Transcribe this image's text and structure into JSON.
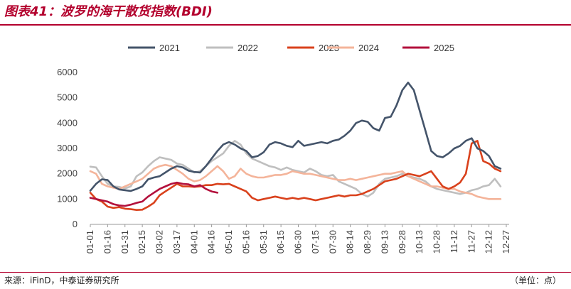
{
  "figure": {
    "title": "图表41：波罗的海干散货指数(BDI)",
    "source": "来源：iFinD，中泰证券研究所",
    "unit": "（单位：点）"
  },
  "colors": {
    "accent": "#b3002d",
    "2021": "#44546a",
    "2022": "#bfbfbf",
    "2023": "#d9411c",
    "2024": "#f4b49a",
    "2025": "#b3103c"
  },
  "chart_data": {
    "type": "line",
    "title": "",
    "xlabel": "",
    "ylabel": "",
    "ylim": [
      0,
      6000
    ],
    "yticks": [
      "0",
      "1000",
      "2000",
      "3000",
      "4000",
      "5000",
      "6000"
    ],
    "xticks": [
      "01-01",
      "01-16",
      "01-31",
      "02-15",
      "03-02",
      "03-17",
      "04-01",
      "04-16",
      "05-01",
      "05-16",
      "05-31",
      "06-15",
      "06-30",
      "07-15",
      "07-30",
      "08-14",
      "08-29",
      "09-13",
      "09-28",
      "10-13",
      "10-28",
      "11-12",
      "11-27",
      "12-12",
      "12-27"
    ],
    "x_unit": "day-of-year",
    "legend_position": "top",
    "grid": false,
    "series": [
      {
        "name": "2021",
        "x": [
          1,
          6,
          11,
          16,
          21,
          26,
          31,
          36,
          41,
          46,
          51,
          56,
          61,
          66,
          71,
          76,
          81,
          86,
          91,
          96,
          101,
          106,
          111,
          116,
          121,
          126,
          131,
          136,
          141,
          146,
          151,
          156,
          161,
          166,
          171,
          176,
          181,
          186,
          191,
          196,
          201,
          206,
          211,
          216,
          221,
          226,
          231,
          236,
          241,
          246,
          251,
          256,
          261,
          266,
          271,
          276,
          281,
          286,
          291,
          296,
          301,
          306,
          311,
          316,
          321,
          326,
          331,
          336,
          341,
          346,
          351,
          356
        ],
        "y": [
          1330,
          1600,
          1780,
          1750,
          1500,
          1380,
          1350,
          1320,
          1400,
          1500,
          1780,
          1850,
          1900,
          2050,
          2200,
          2300,
          2250,
          2120,
          2070,
          2050,
          2300,
          2600,
          2900,
          3150,
          3250,
          3150,
          3000,
          2900,
          2650,
          2700,
          2850,
          3150,
          3250,
          3200,
          3100,
          3050,
          3300,
          3100,
          3150,
          3200,
          3250,
          3200,
          3300,
          3350,
          3500,
          3700,
          4000,
          4100,
          4050,
          3800,
          3700,
          4200,
          4250,
          4700,
          5300,
          5600,
          5300,
          4500,
          3700,
          2900,
          2700,
          2650,
          2800,
          3000,
          3100,
          3300,
          3400,
          3000,
          2900,
          2700,
          2300,
          2200
        ]
      },
      {
        "name": "2022",
        "x": [
          1,
          6,
          11,
          16,
          21,
          26,
          31,
          36,
          41,
          46,
          51,
          56,
          61,
          66,
          71,
          76,
          81,
          86,
          91,
          96,
          101,
          106,
          111,
          116,
          121,
          126,
          131,
          136,
          141,
          146,
          151,
          156,
          161,
          166,
          171,
          176,
          181,
          186,
          191,
          196,
          201,
          206,
          211,
          216,
          221,
          226,
          231,
          236,
          241,
          246,
          251,
          256,
          261,
          266,
          271,
          276,
          281,
          286,
          291,
          296,
          301,
          306,
          311,
          316,
          321,
          326,
          331,
          336,
          341,
          346,
          351,
          356
        ],
        "y": [
          2280,
          2250,
          1900,
          1600,
          1500,
          1480,
          1420,
          1500,
          1900,
          2050,
          2300,
          2500,
          2650,
          2600,
          2550,
          2400,
          2350,
          2200,
          2050,
          2100,
          2300,
          2500,
          2650,
          2800,
          3100,
          3300,
          3150,
          2800,
          2600,
          2500,
          2400,
          2300,
          2250,
          2150,
          2250,
          2150,
          2100,
          2050,
          2200,
          2100,
          1950,
          1900,
          1950,
          1700,
          1600,
          1500,
          1400,
          1200,
          1100,
          1250,
          1600,
          1800,
          1850,
          1900,
          2000,
          1900,
          1850,
          1800,
          1700,
          1500,
          1400,
          1350,
          1300,
          1250,
          1200,
          1250,
          1350,
          1400,
          1500,
          1550,
          1800,
          1500
        ]
      },
      {
        "name": "2023",
        "x": [
          1,
          6,
          11,
          16,
          21,
          26,
          31,
          36,
          41,
          46,
          51,
          56,
          61,
          66,
          71,
          76,
          81,
          86,
          91,
          96,
          101,
          106,
          111,
          116,
          121,
          126,
          131,
          136,
          141,
          146,
          151,
          156,
          161,
          166,
          171,
          176,
          181,
          186,
          191,
          196,
          201,
          206,
          211,
          216,
          221,
          226,
          231,
          236,
          241,
          246,
          251,
          256,
          261,
          266,
          271,
          276,
          281,
          286,
          291,
          296,
          301,
          306,
          311,
          316,
          321,
          326,
          331,
          336,
          341,
          346,
          351,
          356
        ],
        "y": [
          1250,
          1000,
          900,
          700,
          650,
          680,
          620,
          600,
          570,
          580,
          700,
          850,
          1150,
          1300,
          1450,
          1600,
          1500,
          1500,
          1480,
          1500,
          1550,
          1550,
          1600,
          1580,
          1600,
          1500,
          1400,
          1300,
          1050,
          950,
          1000,
          1050,
          1100,
          1050,
          1000,
          1050,
          1000,
          1050,
          1000,
          950,
          1000,
          1050,
          1100,
          1150,
          1100,
          1150,
          1150,
          1200,
          1300,
          1400,
          1550,
          1700,
          1750,
          1800,
          1900,
          2000,
          1950,
          1900,
          2000,
          2100,
          1800,
          1500,
          1400,
          1500,
          1650,
          2000,
          3200,
          3300,
          2500,
          2400,
          2200,
          2100
        ]
      },
      {
        "name": "2024",
        "x": [
          1,
          6,
          11,
          16,
          21,
          26,
          31,
          36,
          41,
          46,
          51,
          56,
          61,
          66,
          71,
          76,
          81,
          86,
          91,
          96,
          101,
          106,
          111,
          116,
          121,
          126,
          131,
          136,
          141,
          146,
          151,
          156,
          161,
          166,
          171,
          176,
          181,
          186,
          191,
          196,
          201,
          206,
          211,
          216,
          221,
          226,
          231,
          236,
          241,
          246,
          251,
          256,
          261,
          266,
          271,
          276,
          281,
          286,
          291,
          296,
          301,
          306,
          311,
          316,
          321,
          326,
          331,
          336,
          341,
          346,
          351,
          356
        ],
        "y": [
          2100,
          2000,
          1600,
          1500,
          1450,
          1400,
          1500,
          1600,
          1700,
          1800,
          2000,
          2200,
          2300,
          2350,
          2300,
          2150,
          2000,
          1800,
          1700,
          1750,
          1900,
          2100,
          2300,
          2100,
          1800,
          1900,
          2200,
          2000,
          1900,
          1850,
          1850,
          1900,
          1950,
          1950,
          2000,
          2100,
          2050,
          2000,
          2000,
          1950,
          1900,
          1850,
          1800,
          1750,
          1750,
          1800,
          1750,
          1800,
          1850,
          1900,
          1950,
          2000,
          2000,
          2050,
          2100,
          1900,
          1800,
          1700,
          1600,
          1500,
          1500,
          1450,
          1400,
          1400,
          1300,
          1250,
          1200,
          1100,
          1050,
          1000,
          1000,
          1000
        ]
      },
      {
        "name": "2025",
        "x": [
          1,
          6,
          11,
          16,
          21,
          26,
          31,
          36,
          41,
          46,
          51,
          56,
          61,
          66,
          71,
          76,
          81,
          86,
          91,
          96,
          101,
          106,
          111
        ],
        "y": [
          1050,
          1000,
          950,
          900,
          800,
          750,
          730,
          780,
          850,
          900,
          1100,
          1250,
          1400,
          1500,
          1600,
          1650,
          1600,
          1580,
          1500,
          1550,
          1400,
          1300,
          1250
        ]
      }
    ]
  }
}
